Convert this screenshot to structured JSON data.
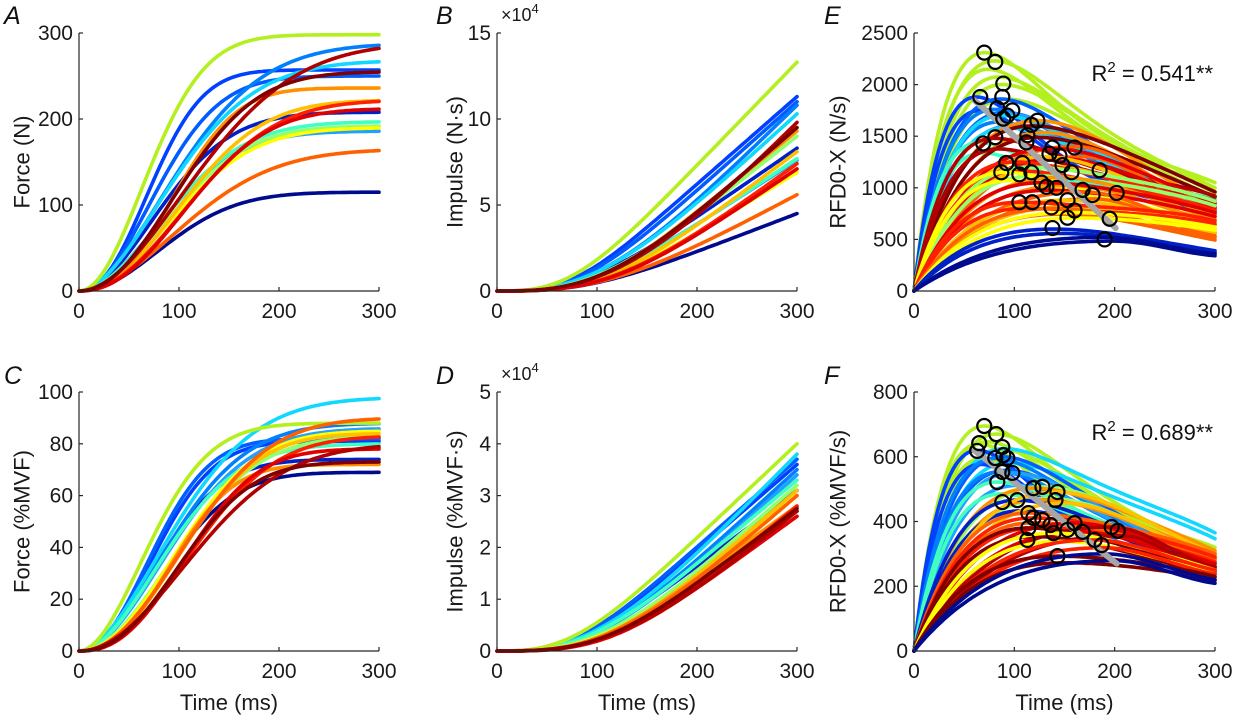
{
  "chart_data": [
    {
      "panel": "A",
      "type": "line",
      "xlabel": "",
      "ylabel": "Force (N)",
      "xlim": [
        0,
        300
      ],
      "ylim": [
        0,
        300
      ],
      "xticks": [
        0,
        100,
        200,
        300
      ],
      "yticks": [
        0,
        100,
        200,
        300
      ],
      "ytick_labels": [
        "0",
        "100",
        "200",
        "300"
      ],
      "xtick_labels": [
        "0",
        "100",
        "200",
        "300"
      ],
      "exponent": "",
      "colormap": "jet",
      "series_model": "sigmoid: y = plateau * (1 - exp(-(t/tau)^k))",
      "series": [
        {
          "color": "#000a8f",
          "plateau": 115,
          "tau": 110,
          "k": 2.0
        },
        {
          "color": "#0020c8",
          "plateau": 208,
          "tau": 105,
          "k": 1.9
        },
        {
          "color": "#0040ff",
          "plateau": 257,
          "tau": 88,
          "k": 2.2
        },
        {
          "color": "#005cff",
          "plateau": 250,
          "tau": 98,
          "k": 2.0
        },
        {
          "color": "#0080ff",
          "plateau": 288,
          "tau": 125,
          "k": 1.8
        },
        {
          "color": "#20a0ff",
          "plateau": 186,
          "tau": 110,
          "k": 1.9
        },
        {
          "color": "#10d8ff",
          "plateau": 268,
          "tau": 120,
          "k": 1.8
        },
        {
          "color": "#40ffc0",
          "plateau": 197,
          "tau": 115,
          "k": 1.9
        },
        {
          "color": "#90ff70",
          "plateau": 192,
          "tau": 118,
          "k": 2.0
        },
        {
          "color": "#b4f020",
          "plateau": 298,
          "tau": 88,
          "k": 2.0
        },
        {
          "color": "#ffff00",
          "plateau": 190,
          "tau": 122,
          "k": 2.0
        },
        {
          "color": "#ffc000",
          "plateau": 222,
          "tau": 130,
          "k": 2.1
        },
        {
          "color": "#ff9000",
          "plateau": 236,
          "tau": 115,
          "k": 2.4
        },
        {
          "color": "#ff6000",
          "plateau": 165,
          "tau": 135,
          "k": 1.9
        },
        {
          "color": "#ff2000",
          "plateau": 222,
          "tau": 140,
          "k": 2.1
        },
        {
          "color": "#e00000",
          "plateau": 212,
          "tau": 135,
          "k": 2.2
        },
        {
          "color": "#b00000",
          "plateau": 289,
          "tau": 150,
          "k": 1.9
        },
        {
          "color": "#800000",
          "plateau": 255,
          "tau": 125,
          "k": 2.1
        }
      ]
    },
    {
      "panel": "B",
      "type": "line",
      "xlabel": "",
      "ylabel": "Impulse (N·s)",
      "xlim": [
        0,
        300
      ],
      "ylim": [
        0,
        15
      ],
      "xticks": [
        0,
        100,
        200,
        300
      ],
      "yticks": [
        0,
        5,
        10,
        15
      ],
      "ytick_labels": [
        "0",
        "5",
        "10",
        "15"
      ],
      "xtick_labels": [
        "0",
        "100",
        "200",
        "300"
      ],
      "exponent": "×10",
      "exponent_power": "4",
      "colormap": "jet",
      "series_model": "cumulative integral of panel A force curves (units ×10^4)",
      "end_values_x1e4": [
        4.5,
        8.3,
        11.3,
        11.0,
        10.8,
        7.6,
        10.3,
        7.7,
        9.0,
        13.3,
        6.9,
        8.1,
        9.3,
        5.6,
        7.4,
        7.1,
        9.8,
        9.5
      ]
    },
    {
      "panel": "E",
      "type": "line+scatter",
      "xlabel": "",
      "ylabel": "RFD0-X (N/s)",
      "xlim": [
        0,
        300
      ],
      "ylim": [
        0,
        2500
      ],
      "xticks": [
        0,
        100,
        200,
        300
      ],
      "yticks": [
        0,
        500,
        1000,
        1500,
        2000,
        2500
      ],
      "ytick_labels": [
        "0",
        "500",
        "1000",
        "1500",
        "2000",
        "2500"
      ],
      "xtick_labels": [
        "0",
        "100",
        "200",
        "300"
      ],
      "exponent": "",
      "annotation": "R",
      "annotation_sup": "2",
      "annotation_rest": " = 0.541**",
      "r_squared": 0.541,
      "significance": "**",
      "series_model": "RFD curves: y = peak * (t/tp) * exp(1 - t/tp) blended to tail value at 300 ms",
      "peaks": [
        {
          "color": "#b4f020",
          "peak": 2310,
          "tp": 70,
          "end": 1050
        },
        {
          "color": "#b4f020",
          "peak": 2230,
          "tp": 80,
          "end": 1000
        },
        {
          "color": "#b4f020",
          "peak": 2000,
          "tp": 88,
          "end": 950
        },
        {
          "color": "#0040ff",
          "peak": 1880,
          "tp": 62,
          "end": 800
        },
        {
          "color": "#0060ff",
          "peak": 1860,
          "tp": 86,
          "end": 780
        },
        {
          "color": "#0080ff",
          "peak": 1760,
          "tp": 80,
          "end": 820
        },
        {
          "color": "#20a0ff",
          "peak": 1720,
          "tp": 92,
          "end": 760
        },
        {
          "color": "#10d8ff",
          "peak": 1700,
          "tp": 88,
          "end": 850
        },
        {
          "color": "#40ffc0",
          "peak": 1440,
          "tp": 65,
          "end": 900
        },
        {
          "color": "#ff9000",
          "peak": 1650,
          "tp": 124,
          "end": 830
        },
        {
          "color": "#800000",
          "peak": 1600,
          "tp": 118,
          "end": 960
        },
        {
          "color": "#b00000",
          "peak": 1480,
          "tp": 80,
          "end": 920
        },
        {
          "color": "#ff6000",
          "peak": 1400,
          "tp": 160,
          "end": 780
        },
        {
          "color": "#e00000",
          "peak": 1380,
          "tp": 138,
          "end": 850
        },
        {
          "color": "#ffc000",
          "peak": 1300,
          "tp": 130,
          "end": 720
        },
        {
          "color": "#ff2000",
          "peak": 1250,
          "tp": 100,
          "end": 820
        },
        {
          "color": "#90ff70",
          "peak": 1200,
          "tp": 115,
          "end": 870
        },
        {
          "color": "#ffff00",
          "peak": 1150,
          "tp": 90,
          "end": 640
        },
        {
          "color": "#ff9000",
          "peak": 1100,
          "tp": 145,
          "end": 700
        },
        {
          "color": "#e00000",
          "peak": 1050,
          "tp": 128,
          "end": 760
        },
        {
          "color": "#ff6000",
          "peak": 960,
          "tp": 170,
          "end": 560
        },
        {
          "color": "#ffc000",
          "peak": 880,
          "tp": 150,
          "end": 600
        },
        {
          "color": "#ff2000",
          "peak": 860,
          "tp": 105,
          "end": 680
        },
        {
          "color": "#ff6000",
          "peak": 800,
          "tp": 140,
          "end": 520
        },
        {
          "color": "#ffff00",
          "peak": 760,
          "tp": 155,
          "end": 620
        },
        {
          "color": "#0020c8",
          "peak": 600,
          "tp": 140,
          "end": 390
        },
        {
          "color": "#000a8f",
          "peak": 520,
          "tp": 190,
          "end": 360
        }
      ],
      "scatter": [
        [
          70,
          2310
        ],
        [
          81,
          2220
        ],
        [
          89,
          2010
        ],
        [
          66,
          1880
        ],
        [
          88,
          1880
        ],
        [
          83,
          1770
        ],
        [
          98,
          1750
        ],
        [
          93,
          1700
        ],
        [
          89,
          1670
        ],
        [
          123,
          1650
        ],
        [
          117,
          1610
        ],
        [
          81,
          1490
        ],
        [
          69,
          1430
        ],
        [
          113,
          1510
        ],
        [
          112,
          1440
        ],
        [
          160,
          1390
        ],
        [
          138,
          1390
        ],
        [
          135,
          1330
        ],
        [
          145,
          1310
        ],
        [
          92,
          1240
        ],
        [
          87,
          1150
        ],
        [
          108,
          1240
        ],
        [
          117,
          1150
        ],
        [
          105,
          1130
        ],
        [
          148,
          1220
        ],
        [
          157,
          1150
        ],
        [
          185,
          1170
        ],
        [
          127,
          1050
        ],
        [
          132,
          1010
        ],
        [
          142,
          1000
        ],
        [
          168,
          980
        ],
        [
          178,
          930
        ],
        [
          202,
          950
        ],
        [
          153,
          880
        ],
        [
          105,
          860
        ],
        [
          118,
          860
        ],
        [
          137,
          810
        ],
        [
          160,
          780
        ],
        [
          153,
          710
        ],
        [
          195,
          700
        ],
        [
          138,
          610
        ],
        [
          190,
          500
        ]
      ],
      "fit_line": {
        "x": [
          60,
          201
        ],
        "y": [
          1850,
          610
        ]
      }
    },
    {
      "panel": "C",
      "type": "line",
      "xlabel": "Time (ms)",
      "ylabel": "Force (%MVF)",
      "xlim": [
        0,
        300
      ],
      "ylim": [
        0,
        100
      ],
      "xticks": [
        0,
        100,
        200,
        300
      ],
      "yticks": [
        0,
        20,
        40,
        60,
        80,
        100
      ],
      "ytick_labels": [
        "0",
        "20",
        "40",
        "60",
        "80",
        "100"
      ],
      "xtick_labels": [
        "0",
        "100",
        "200",
        "300"
      ],
      "exponent": "",
      "colormap": "jet",
      "series_model": "sigmoid: y = plateau * (1 - exp(-(t/tau)^k))",
      "series": [
        {
          "color": "#000a8f",
          "plateau": 69,
          "tau": 110,
          "k": 2.1
        },
        {
          "color": "#0020c8",
          "plateau": 74,
          "tau": 100,
          "k": 2.0
        },
        {
          "color": "#0040ff",
          "plateau": 81,
          "tau": 95,
          "k": 2.1
        },
        {
          "color": "#0060ff",
          "plateau": 82,
          "tau": 92,
          "k": 2.1
        },
        {
          "color": "#0080ff",
          "plateau": 88,
          "tau": 115,
          "k": 1.9
        },
        {
          "color": "#20a0ff",
          "plateau": 86,
          "tau": 118,
          "k": 1.9
        },
        {
          "color": "#10d8ff",
          "plateau": 98,
          "tau": 120,
          "k": 1.8
        },
        {
          "color": "#40ffc0",
          "plateau": 80,
          "tau": 110,
          "k": 1.9
        },
        {
          "color": "#90ff70",
          "plateau": 83,
          "tau": 125,
          "k": 2.0
        },
        {
          "color": "#b4f020",
          "plateau": 88,
          "tau": 90,
          "k": 1.9
        },
        {
          "color": "#ffff00",
          "plateau": 85,
          "tau": 125,
          "k": 2.1
        },
        {
          "color": "#ffc000",
          "plateau": 84,
          "tau": 128,
          "k": 2.2
        },
        {
          "color": "#ff9000",
          "plateau": 72,
          "tau": 112,
          "k": 2.4
        },
        {
          "color": "#ff6000",
          "plateau": 90,
          "tau": 135,
          "k": 2.1
        },
        {
          "color": "#ff2000",
          "plateau": 83,
          "tau": 140,
          "k": 2.2
        },
        {
          "color": "#e00000",
          "plateau": 78,
          "tau": 130,
          "k": 2.4
        },
        {
          "color": "#b00000",
          "plateau": 80,
          "tau": 145,
          "k": 2.0
        },
        {
          "color": "#800000",
          "plateau": 73,
          "tau": 125,
          "k": 2.3
        }
      ]
    },
    {
      "panel": "D",
      "type": "line",
      "xlabel": "Time (ms)",
      "ylabel": "Impulse (%MVF·s)",
      "xlim": [
        0,
        300
      ],
      "ylim": [
        0,
        5
      ],
      "xticks": [
        0,
        100,
        200,
        300
      ],
      "yticks": [
        0,
        1,
        2,
        3,
        4,
        5
      ],
      "ytick_labels": [
        "0",
        "1",
        "2",
        "3",
        "4",
        "5"
      ],
      "xtick_labels": [
        "0",
        "100",
        "200",
        "300"
      ],
      "exponent": "×10",
      "exponent_power": "4",
      "colormap": "jet",
      "series_model": "cumulative integral of panel C force curves (units ×10^4)",
      "end_values_x1e4": [
        2.7,
        3.1,
        3.6,
        3.7,
        3.5,
        3.4,
        3.8,
        3.3,
        3.2,
        4.0,
        3.0,
        3.1,
        2.8,
        3.0,
        2.8,
        2.6,
        2.7,
        2.75
      ]
    },
    {
      "panel": "F",
      "type": "line+scatter",
      "xlabel": "Time (ms)",
      "ylabel": "RFD0-X (%MVF/s)",
      "xlim": [
        0,
        300
      ],
      "ylim": [
        0,
        800
      ],
      "xticks": [
        0,
        100,
        200,
        300
      ],
      "yticks": [
        0,
        200,
        400,
        600,
        800
      ],
      "ytick_labels": [
        "0",
        "200",
        "400",
        "600",
        "800"
      ],
      "xtick_labels": [
        "0",
        "100",
        "200",
        "300"
      ],
      "exponent": "",
      "annotation": "R",
      "annotation_sup": "2",
      "annotation_rest": " = 0.689**",
      "r_squared": 0.689,
      "significance": "**",
      "series_model": "RFD curves: y = peak * (t/tp) * exp(1 - t/tp) blended to tail value at 300 ms",
      "peaks": [
        {
          "color": "#b4f020",
          "peak": 695,
          "tp": 70,
          "end": 320
        },
        {
          "color": "#b4f020",
          "peak": 670,
          "tp": 82,
          "end": 300
        },
        {
          "color": "#b4f020",
          "peak": 640,
          "tp": 65,
          "end": 290
        },
        {
          "color": "#10d8ff",
          "peak": 625,
          "tp": 90,
          "end": 365
        },
        {
          "color": "#0040ff",
          "peak": 620,
          "tp": 63,
          "end": 260
        },
        {
          "color": "#0060ff",
          "peak": 600,
          "tp": 88,
          "end": 270
        },
        {
          "color": "#0080ff",
          "peak": 595,
          "tp": 81,
          "end": 280
        },
        {
          "color": "#20a0ff",
          "peak": 550,
          "tp": 98,
          "end": 260
        },
        {
          "color": "#40ffc0",
          "peak": 522,
          "tp": 83,
          "end": 280
        },
        {
          "color": "#90ff70",
          "peak": 507,
          "tp": 128,
          "end": 300
        },
        {
          "color": "#ff9000",
          "peak": 503,
          "tp": 119,
          "end": 310
        },
        {
          "color": "#0020c8",
          "peak": 466,
          "tp": 103,
          "end": 250
        },
        {
          "color": "#ffc000",
          "peak": 491,
          "tp": 143,
          "end": 300
        },
        {
          "color": "#ff6000",
          "peak": 426,
          "tp": 114,
          "end": 300
        },
        {
          "color": "#ff2000",
          "peak": 411,
          "tp": 119,
          "end": 290
        },
        {
          "color": "#e00000",
          "peak": 395,
          "tp": 160,
          "end": 270
        },
        {
          "color": "#b00000",
          "peak": 383,
          "tp": 197,
          "end": 260
        },
        {
          "color": "#800000",
          "peak": 380,
          "tp": 114,
          "end": 240
        },
        {
          "color": "#ffff00",
          "peak": 364,
          "tp": 139,
          "end": 250
        },
        {
          "color": "#ff2000",
          "peak": 343,
          "tp": 180,
          "end": 250
        },
        {
          "color": "#800000",
          "peak": 293,
          "tp": 143,
          "end": 230
        },
        {
          "color": "#000a8f",
          "peak": 300,
          "tp": 190,
          "end": 220
        }
      ],
      "scatter": [
        [
          70,
          695
        ],
        [
          82,
          670
        ],
        [
          65,
          642
        ],
        [
          88,
          630
        ],
        [
          63,
          618
        ],
        [
          89,
          605
        ],
        [
          81,
          596
        ],
        [
          93,
          596
        ],
        [
          98,
          550
        ],
        [
          88,
          553
        ],
        [
          83,
          522
        ],
        [
          103,
          466
        ],
        [
          88,
          460
        ],
        [
          119,
          503
        ],
        [
          128,
          507
        ],
        [
          143,
          491
        ],
        [
          141,
          466
        ],
        [
          114,
          426
        ],
        [
          119,
          411
        ],
        [
          128,
          405
        ],
        [
          114,
          380
        ],
        [
          113,
          343
        ],
        [
          136,
          389
        ],
        [
          139,
          364
        ],
        [
          153,
          374
        ],
        [
          160,
          395
        ],
        [
          168,
          368
        ],
        [
          180,
          343
        ],
        [
          187,
          327
        ],
        [
          197,
          383
        ],
        [
          203,
          371
        ],
        [
          143,
          293
        ]
      ],
      "fit_line": {
        "x": [
          60,
          202
        ],
        "y": [
          620,
          270
        ]
      }
    }
  ]
}
